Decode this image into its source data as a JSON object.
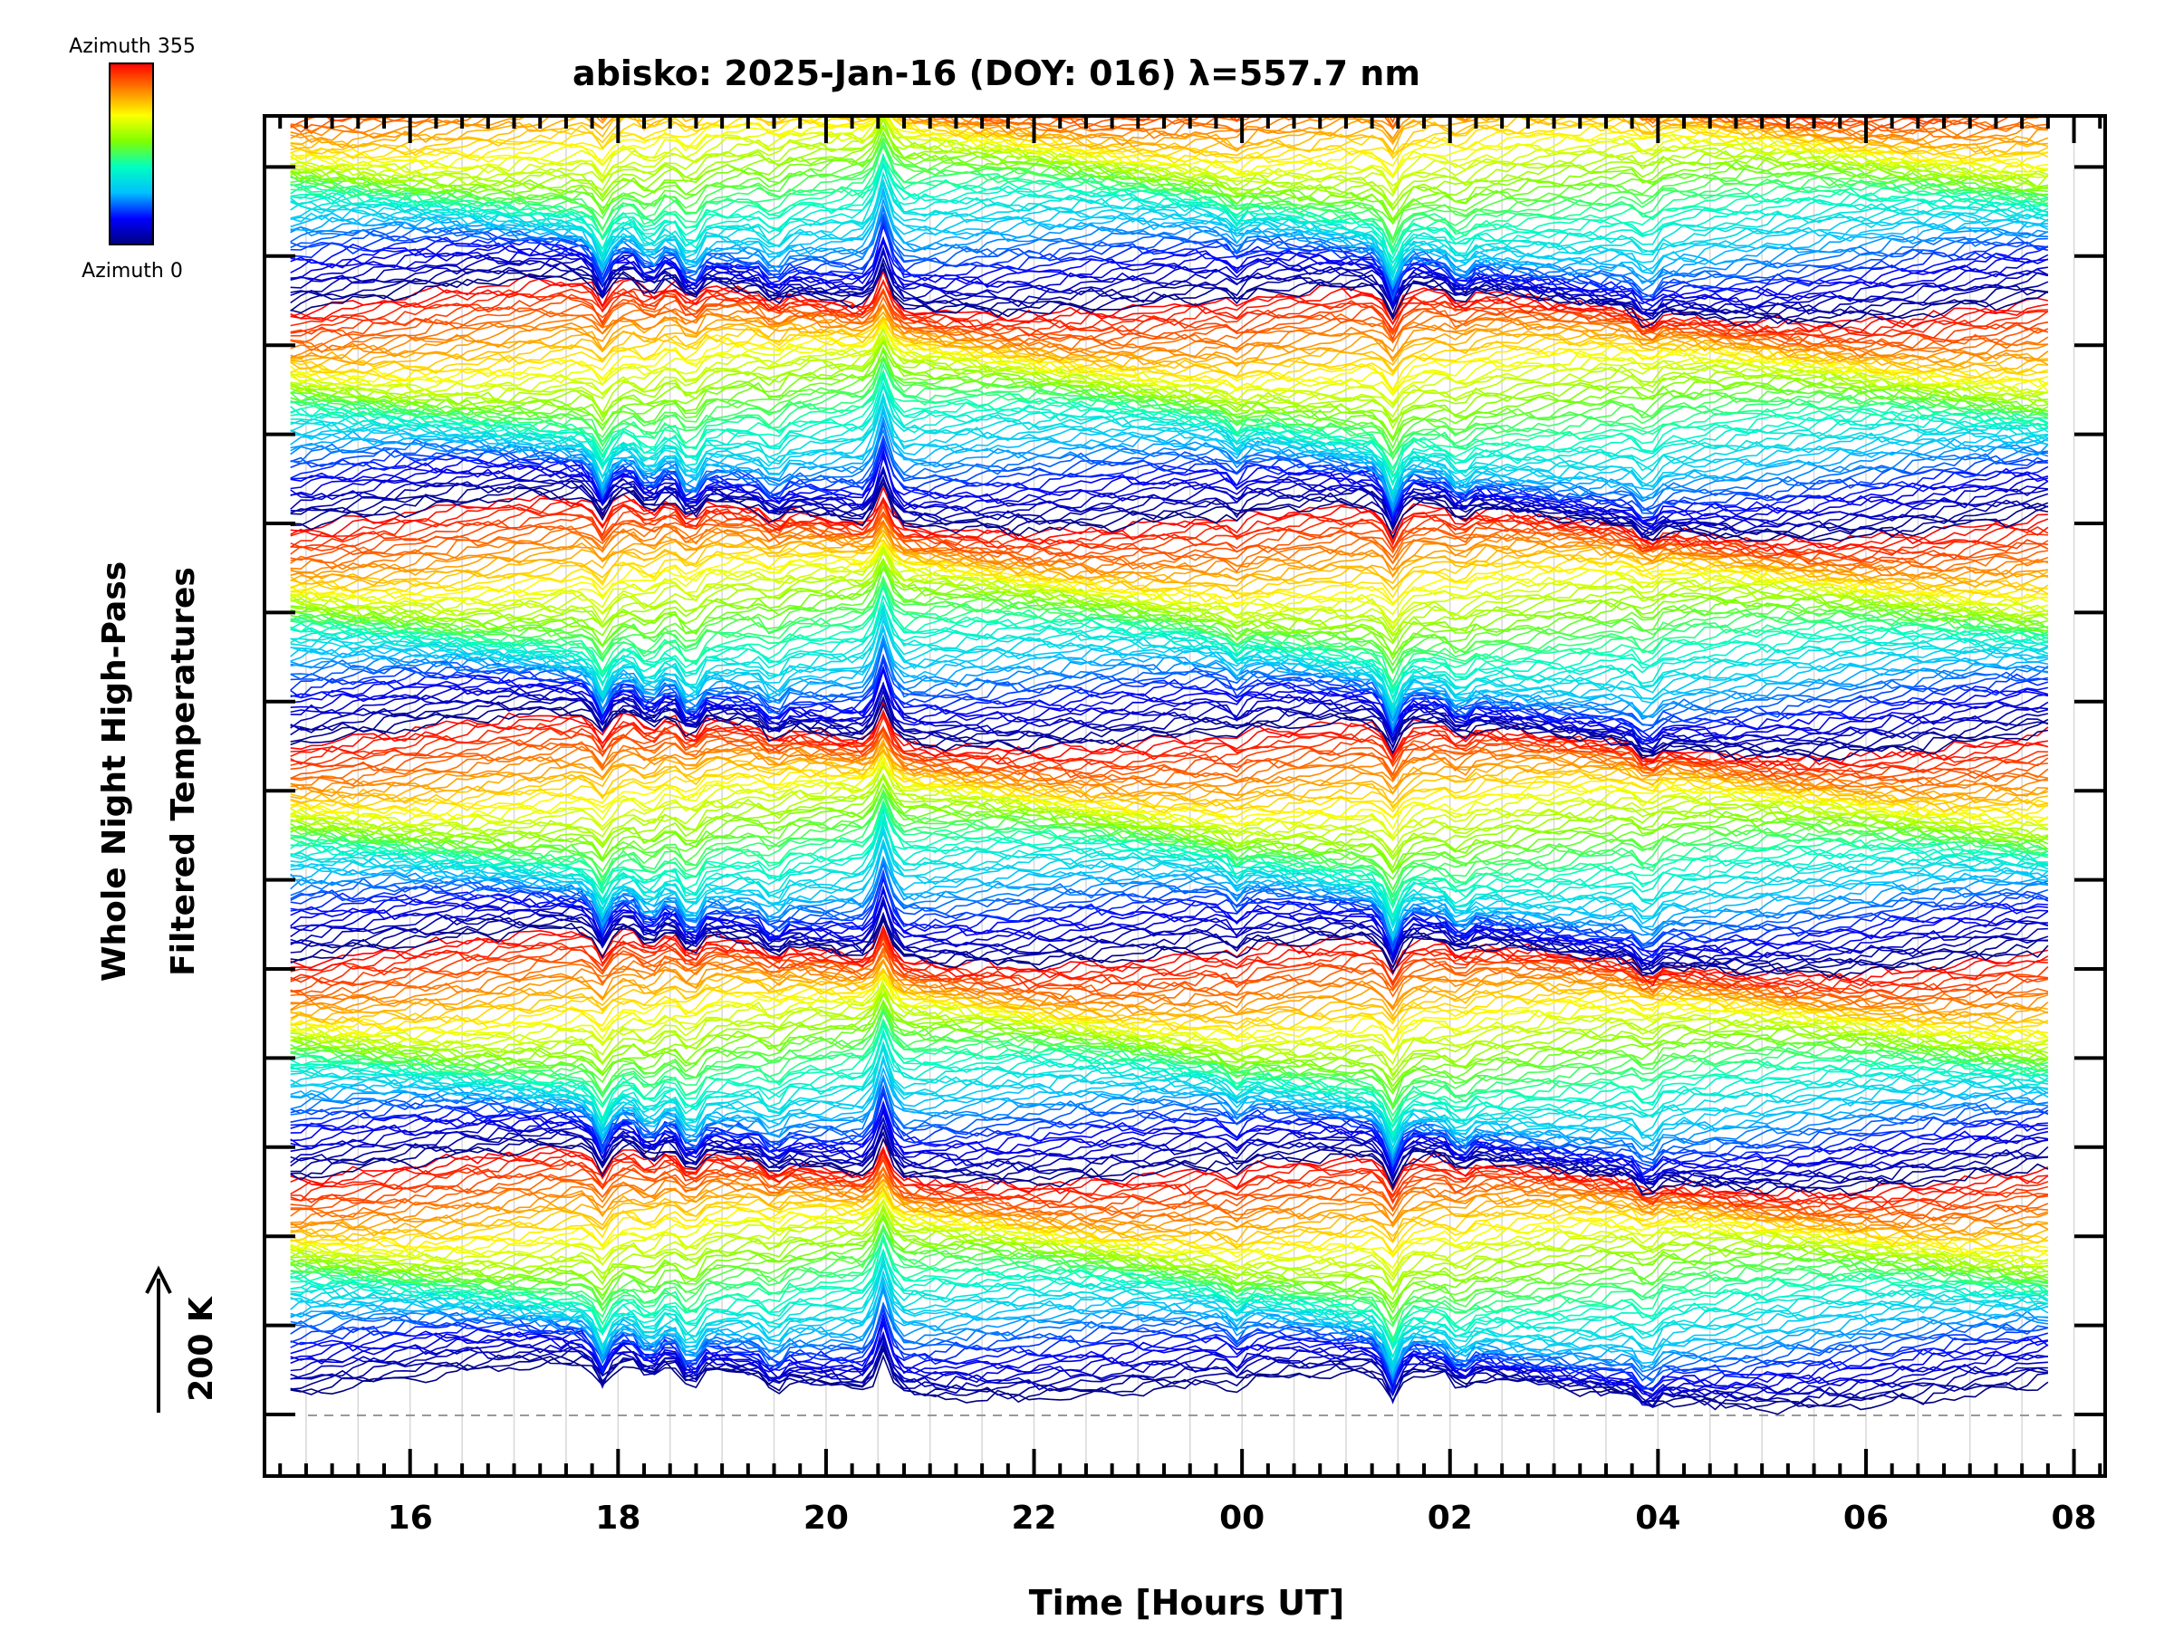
{
  "chart_data": {
    "type": "line",
    "title": "abisko: 2025-Jan-16 (DOY: 016) λ=557.7 nm",
    "xlabel": "Time [Hours UT]",
    "ylabel_line1": "Whole Night High-Pass",
    "ylabel_line2": "Filtered Temperatures",
    "scale_label": "200 K",
    "x_tick_labels": [
      "16",
      "18",
      "20",
      "22",
      "00",
      "02",
      "04",
      "06",
      "08"
    ],
    "xlim": [
      14.6,
      32.3
    ],
    "x_major_ticks": [
      16,
      18,
      20,
      22,
      24,
      26,
      28,
      30,
      32
    ],
    "x_minor_step": 0.25,
    "y_major_tick_count": 15,
    "colorbar": {
      "top_label": "Azimuth 355",
      "bottom_label": "Azimuth 0",
      "colors": [
        "#000080",
        "#0000ff",
        "#00c0ff",
        "#00ffc0",
        "#80ff00",
        "#ffff00",
        "#ff8000",
        "#ff0000"
      ]
    },
    "bundles": 6,
    "series_per_bundle": 72,
    "azimuth_range": [
      0,
      355
    ],
    "events": [
      {
        "t": 17.85,
        "depth": 0.9
      },
      {
        "t": 18.3,
        "depth": 0.55
      },
      {
        "t": 18.7,
        "depth": 0.75
      },
      {
        "t": 19.5,
        "depth": 0.45
      },
      {
        "t": 20.55,
        "depth": -1.4
      },
      {
        "t": 23.95,
        "depth": 0.35
      },
      {
        "t": 25.45,
        "depth": 1.1
      },
      {
        "t": 26.1,
        "depth": 0.45
      },
      {
        "t": 27.9,
        "depth": 0.5
      }
    ]
  }
}
